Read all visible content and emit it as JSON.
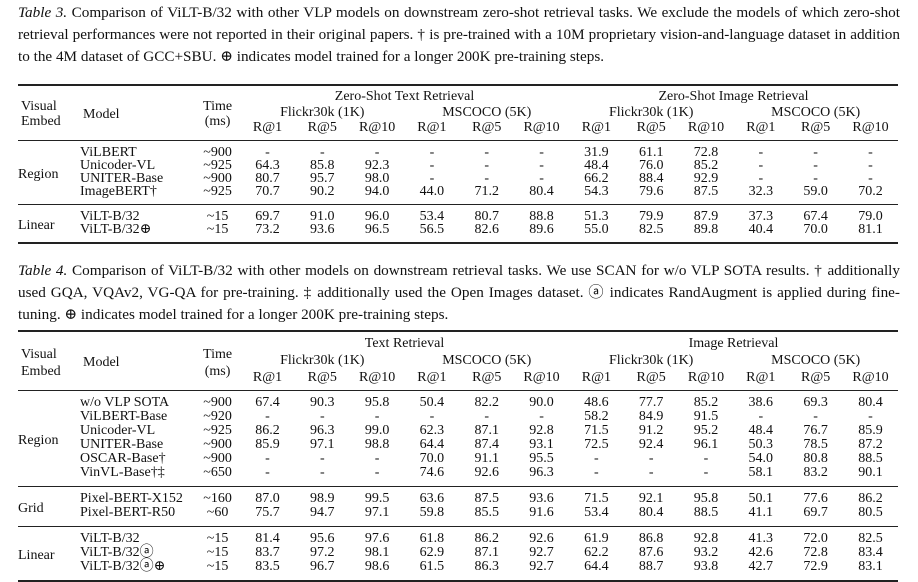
{
  "table3": {
    "label": "Table 3.",
    "caption": " Comparison of ViLT-B/32 with other VLP models on downstream zero-shot retrieval tasks. We exclude the models of which zero-shot retrieval performances were not reported in their original papers. † is pre-trained with a 10M proprietary vision-and-language dataset in addition to the 4M dataset of GCC+SBU. ⊕ indicates model trained for a longer 200K pre-training steps.",
    "header": {
      "visual": "Visual",
      "embed": "Embed",
      "model": "Model",
      "time": "Time",
      "ms": "(ms)",
      "text_group": "Zero-Shot Text Retrieval",
      "image_group": "Zero-Shot Image Retrieval",
      "datasets": [
        "Flickr30k (1K)",
        "MSCOCO (5K)",
        "Flickr30k (1K)",
        "MSCOCO (5K)"
      ],
      "metrics": [
        "R@1",
        "R@5",
        "R@10",
        "R@1",
        "R@5",
        "R@10",
        "R@1",
        "R@5",
        "R@10",
        "R@1",
        "R@5",
        "R@10"
      ]
    },
    "groups": [
      {
        "embed": "Region",
        "rows": [
          {
            "model": "ViLBERT",
            "time": "~900",
            "values": [
              "-",
              "-",
              "-",
              "-",
              "-",
              "-",
              "31.9",
              "61.1",
              "72.8",
              "-",
              "-",
              "-"
            ]
          },
          {
            "model": "Unicoder-VL",
            "time": "~925",
            "values": [
              "64.3",
              "85.8",
              "92.3",
              "-",
              "-",
              "-",
              "48.4",
              "76.0",
              "85.2",
              "-",
              "-",
              "-"
            ]
          },
          {
            "model": "UNITER-Base",
            "time": "~900",
            "values": [
              "80.7",
              "95.7",
              "98.0",
              "-",
              "-",
              "-",
              "66.2",
              "88.4",
              "92.9",
              "-",
              "-",
              "-"
            ]
          },
          {
            "model": "ImageBERT†",
            "time": "~925",
            "values": [
              "70.7",
              "90.2",
              "94.0",
              "44.0",
              "71.2",
              "80.4",
              "54.3",
              "79.6",
              "87.5",
              "32.3",
              "59.0",
              "70.2"
            ]
          }
        ]
      },
      {
        "embed": "Linear",
        "rows": [
          {
            "model": "ViLT-B/32",
            "time": "~15",
            "values": [
              "69.7",
              "91.0",
              "96.0",
              "53.4",
              "80.7",
              "88.8",
              "51.3",
              "79.9",
              "87.9",
              "37.3",
              "67.4",
              "79.0"
            ]
          },
          {
            "model": "ViLT-B/32⊕",
            "time": "~15",
            "values": [
              "73.2",
              "93.6",
              "96.5",
              "56.5",
              "82.6",
              "89.6",
              "55.0",
              "82.5",
              "89.8",
              "40.4",
              "70.0",
              "81.1"
            ]
          }
        ]
      }
    ]
  },
  "table4": {
    "label": "Table 4.",
    "caption": " Comparison of ViLT-B/32 with other models on downstream retrieval tasks. We use SCAN for w/o VLP SOTA results. † additionally used GQA, VQAv2, VG-QA for pre-training. ‡ additionally used the Open Images dataset. ⓐ indicates RandAugment is applied during fine-tuning. ⊕ indicates model trained for a longer 200K pre-training steps.",
    "header": {
      "visual": "Visual",
      "embed": "Embed",
      "model": "Model",
      "time": "Time",
      "ms": "(ms)",
      "text_group": "Text Retrieval",
      "image_group": "Image Retrieval",
      "datasets": [
        "Flickr30k (1K)",
        "MSCOCO (5K)",
        "Flickr30k (1K)",
        "MSCOCO (5K)"
      ],
      "metrics": [
        "R@1",
        "R@5",
        "R@10",
        "R@1",
        "R@5",
        "R@10",
        "R@1",
        "R@5",
        "R@10",
        "R@1",
        "R@5",
        "R@10"
      ]
    },
    "groups": [
      {
        "embed": "Region",
        "rows": [
          {
            "model": "w/o VLP SOTA",
            "time": "~900",
            "values": [
              "67.4",
              "90.3",
              "95.8",
              "50.4",
              "82.2",
              "90.0",
              "48.6",
              "77.7",
              "85.2",
              "38.6",
              "69.3",
              "80.4"
            ]
          },
          {
            "model": "ViLBERT-Base",
            "time": "~920",
            "values": [
              "-",
              "-",
              "-",
              "-",
              "-",
              "-",
              "58.2",
              "84.9",
              "91.5",
              "-",
              "-",
              "-"
            ]
          },
          {
            "model": "Unicoder-VL",
            "time": "~925",
            "values": [
              "86.2",
              "96.3",
              "99.0",
              "62.3",
              "87.1",
              "92.8",
              "71.5",
              "91.2",
              "95.2",
              "48.4",
              "76.7",
              "85.9"
            ]
          },
          {
            "model": "UNITER-Base",
            "time": "~900",
            "values": [
              "85.9",
              "97.1",
              "98.8",
              "64.4",
              "87.4",
              "93.1",
              "72.5",
              "92.4",
              "96.1",
              "50.3",
              "78.5",
              "87.2"
            ]
          },
          {
            "model": "OSCAR-Base†",
            "time": "~900",
            "values": [
              "-",
              "-",
              "-",
              "70.0",
              "91.1",
              "95.5",
              "-",
              "-",
              "-",
              "54.0",
              "80.8",
              "88.5"
            ]
          },
          {
            "model": "VinVL-Base†‡",
            "time": "~650",
            "values": [
              "-",
              "-",
              "-",
              "74.6",
              "92.6",
              "96.3",
              "-",
              "-",
              "-",
              "58.1",
              "83.2",
              "90.1"
            ]
          }
        ]
      },
      {
        "embed": "Grid",
        "rows": [
          {
            "model": "Pixel-BERT-X152",
            "time": "~160",
            "values": [
              "87.0",
              "98.9",
              "99.5",
              "63.6",
              "87.5",
              "93.6",
              "71.5",
              "92.1",
              "95.8",
              "50.1",
              "77.6",
              "86.2"
            ]
          },
          {
            "model": "Pixel-BERT-R50",
            "time": "~60",
            "values": [
              "75.7",
              "94.7",
              "97.1",
              "59.8",
              "85.5",
              "91.6",
              "53.4",
              "80.4",
              "88.5",
              "41.1",
              "69.7",
              "80.5"
            ]
          }
        ]
      },
      {
        "embed": "Linear",
        "rows": [
          {
            "model": "ViLT-B/32",
            "time": "~15",
            "values": [
              "81.4",
              "95.6",
              "97.6",
              "61.8",
              "86.2",
              "92.6",
              "61.9",
              "86.8",
              "92.8",
              "41.3",
              "72.0",
              "82.5"
            ]
          },
          {
            "model": "ViLT-B/32ⓐ",
            "time": "~15",
            "values": [
              "83.7",
              "97.2",
              "98.1",
              "62.9",
              "87.1",
              "92.7",
              "62.2",
              "87.6",
              "93.2",
              "42.6",
              "72.8",
              "83.4"
            ]
          },
          {
            "model": "ViLT-B/32ⓐ⊕",
            "time": "~15",
            "values": [
              "83.5",
              "96.7",
              "98.6",
              "61.5",
              "86.3",
              "92.7",
              "64.4",
              "88.7",
              "93.8",
              "42.7",
              "72.9",
              "83.1"
            ]
          }
        ]
      }
    ]
  }
}
